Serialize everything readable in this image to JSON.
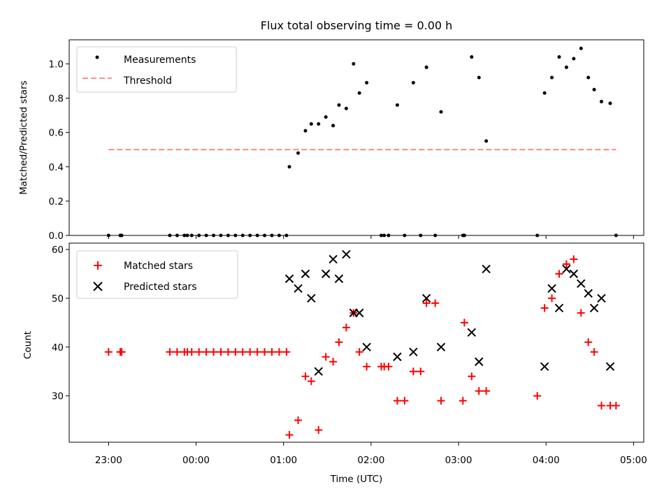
{
  "chart_data": [
    {
      "type": "scatter",
      "title": "Flux total observing time = 0.00 h",
      "ylabel": "Matched/Predicted stars",
      "xlabel": "",
      "ylim": [
        0,
        1.14
      ],
      "yticks": [
        0.0,
        0.2,
        0.4,
        0.6,
        0.8,
        1.0
      ],
      "ytick_labels": [
        "0.0",
        "0.2",
        "0.4",
        "0.6",
        "0.8",
        "1.0"
      ],
      "grid": false,
      "legend_position": "top-left",
      "series": [
        {
          "name": "Measurements",
          "kind": "dots",
          "color": "#000000",
          "x": [
            "23:00",
            "23:08",
            "23:09",
            "23:42",
            "23:47",
            "23:52",
            "23:54",
            "23:57",
            "00:02",
            "00:07",
            "00:12",
            "00:17",
            "00:22",
            "00:27",
            "00:32",
            "00:37",
            "00:42",
            "00:47",
            "00:52",
            "00:57",
            "01:02",
            "01:04",
            "01:10",
            "01:15",
            "01:19",
            "01:24",
            "01:29",
            "01:34",
            "01:38",
            "01:43",
            "01:48",
            "01:52",
            "01:57",
            "02:07",
            "02:09",
            "02:12",
            "02:18",
            "02:23",
            "02:29",
            "02:34",
            "02:38",
            "02:44",
            "02:48",
            "03:03",
            "03:04",
            "03:09",
            "03:14",
            "03:19",
            "03:54",
            "03:59",
            "04:04",
            "04:09",
            "04:14",
            "04:19",
            "04:24",
            "04:29",
            "04:33",
            "04:38",
            "04:44",
            "04:48"
          ],
          "y": [
            0,
            0,
            0,
            0,
            0,
            0,
            0,
            0,
            0,
            0,
            0,
            0,
            0,
            0,
            0,
            0,
            0,
            0,
            0,
            0,
            0,
            0.4,
            0.48,
            0.61,
            0.65,
            0.65,
            0.69,
            0.64,
            0.76,
            0.74,
            1.0,
            0.83,
            0.89,
            0,
            0,
            0,
            0.76,
            0,
            0.89,
            0,
            0.98,
            0,
            0.72,
            0,
            0,
            1.04,
            0.92,
            0.55,
            0,
            0.83,
            0.92,
            1.04,
            0.98,
            1.03,
            1.09,
            0.92,
            0.85,
            0.78,
            0.77,
            0
          ]
        },
        {
          "name": "Threshold",
          "kind": "dashed-line",
          "color": "#ff7f7f",
          "x": [
            "23:00",
            "04:48"
          ],
          "y": [
            0.5,
            0.5
          ]
        }
      ]
    },
    {
      "type": "scatter",
      "title": "",
      "ylabel": "Count",
      "xlabel": "Time (UTC)",
      "ylim": [
        20.5,
        61.3
      ],
      "yticks": [
        30,
        40,
        50,
        60
      ],
      "ytick_labels": [
        "30",
        "40",
        "50",
        "60"
      ],
      "xticks": [
        "23:00",
        "00:00",
        "01:00",
        "02:00",
        "03:00",
        "04:00",
        "05:00"
      ],
      "xlim": [
        "22:33",
        "05:07"
      ],
      "grid": false,
      "legend_position": "top-left",
      "series": [
        {
          "name": "Matched stars",
          "kind": "plus",
          "color": "#ff0000",
          "x": [
            "23:00",
            "23:08",
            "23:09",
            "23:42",
            "23:47",
            "23:52",
            "23:54",
            "23:57",
            "00:02",
            "00:07",
            "00:12",
            "00:17",
            "00:22",
            "00:27",
            "00:32",
            "00:37",
            "00:42",
            "00:47",
            "00:52",
            "00:57",
            "01:02",
            "01:04",
            "01:10",
            "01:15",
            "01:19",
            "01:24",
            "01:29",
            "01:34",
            "01:38",
            "01:43",
            "01:48",
            "01:52",
            "01:57",
            "02:07",
            "02:09",
            "02:12",
            "02:18",
            "02:23",
            "02:29",
            "02:34",
            "02:38",
            "02:44",
            "02:48",
            "03:03",
            "03:04",
            "03:09",
            "03:14",
            "03:19",
            "03:54",
            "03:59",
            "04:04",
            "04:09",
            "04:14",
            "04:19",
            "04:24",
            "04:29",
            "04:33",
            "04:38",
            "04:44",
            "04:48"
          ],
          "y": [
            39,
            39,
            39,
            39,
            39,
            39,
            39,
            39,
            39,
            39,
            39,
            39,
            39,
            39,
            39,
            39,
            39,
            39,
            39,
            39,
            39,
            22,
            25,
            34,
            33,
            23,
            38,
            37,
            41,
            44,
            47,
            39,
            36,
            36,
            36,
            36,
            29,
            29,
            35,
            35,
            49,
            49,
            29,
            29,
            45,
            34,
            31,
            31,
            30,
            48,
            50,
            55,
            57,
            58,
            47,
            41,
            39,
            28,
            28,
            28
          ]
        },
        {
          "name": "Predicted stars",
          "kind": "x",
          "color": "#000000",
          "x": [
            "01:04",
            "01:10",
            "01:15",
            "01:19",
            "01:24",
            "01:29",
            "01:34",
            "01:38",
            "01:43",
            "01:48",
            "01:52",
            "01:57",
            "02:18",
            "02:29",
            "02:38",
            "02:48",
            "03:09",
            "03:14",
            "03:19",
            "03:59",
            "04:04",
            "04:09",
            "04:14",
            "04:19",
            "04:24",
            "04:29",
            "04:33",
            "04:38",
            "04:44"
          ],
          "y": [
            54,
            52,
            55,
            50,
            35,
            55,
            58,
            54,
            59,
            47,
            47,
            40,
            38,
            39,
            50,
            40,
            43,
            37,
            56,
            36,
            52,
            48,
            56,
            55,
            53,
            51,
            48,
            50,
            36
          ]
        }
      ]
    }
  ]
}
